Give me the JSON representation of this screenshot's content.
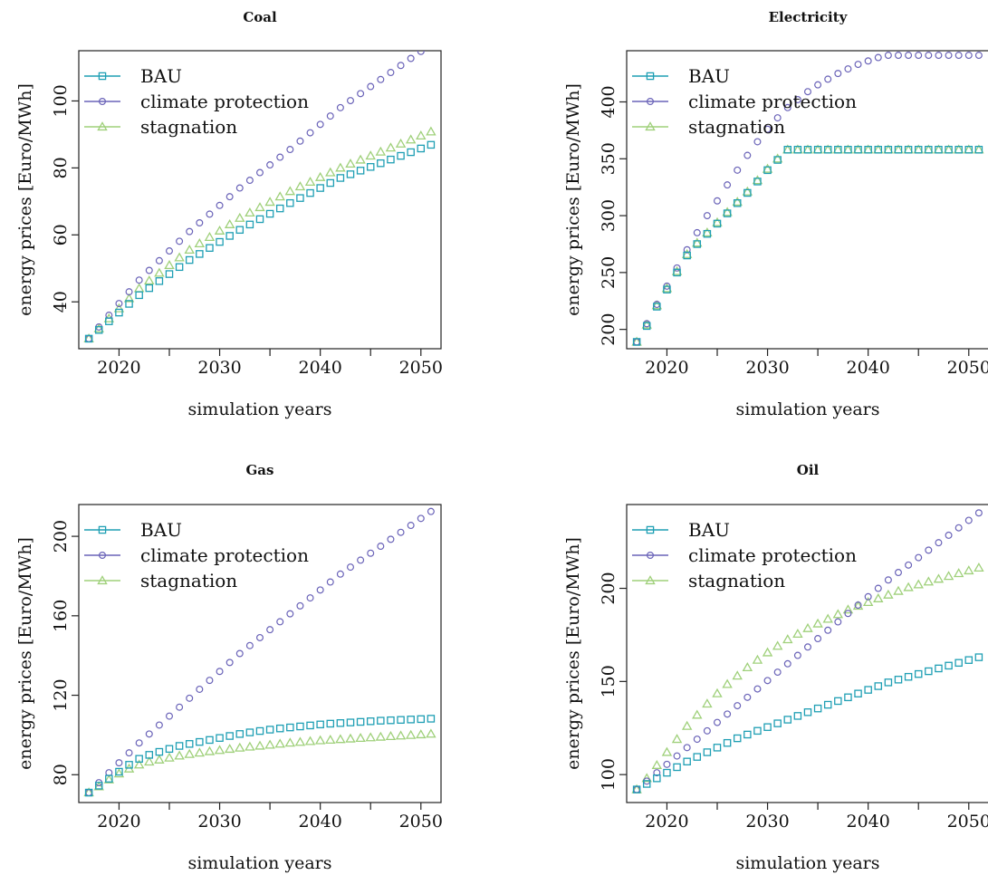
{
  "colors": {
    "BAU": "#1f9fb4",
    "climate protection": "#6a63b8",
    "stagnation": "#9fd07a"
  },
  "chart_data": [
    {
      "type": "scatter",
      "title": "Coal",
      "xlabel": "simulation years",
      "ylabel": "energy prices [Euro/MWh]",
      "xlim": [
        2016,
        2052
      ],
      "ylim": [
        26,
        115
      ],
      "xticks": [
        2020,
        2030,
        2040,
        2050
      ],
      "yticks": [
        40,
        60,
        80,
        100
      ],
      "legend": "top-left",
      "x": [
        2017,
        2018,
        2019,
        2020,
        2021,
        2022,
        2023,
        2024,
        2025,
        2026,
        2027,
        2028,
        2029,
        2030,
        2031,
        2032,
        2033,
        2034,
        2035,
        2036,
        2037,
        2038,
        2039,
        2040,
        2041,
        2042,
        2043,
        2044,
        2045,
        2046,
        2047,
        2048,
        2049,
        2050,
        2051
      ],
      "series": [
        {
          "name": "BAU",
          "marker": "square",
          "values": [
            29,
            31.6,
            34.2,
            36.8,
            39.4,
            42,
            44.1,
            46.2,
            48.3,
            50.4,
            52.5,
            54.3,
            56.1,
            57.9,
            59.7,
            61.5,
            63.1,
            64.7,
            66.3,
            67.9,
            69.5,
            71,
            72.5,
            74,
            75.5,
            77,
            78.1,
            79.2,
            80.3,
            81.4,
            82.5,
            83.6,
            84.7,
            85.8,
            86.9
          ]
        },
        {
          "name": "climate protection",
          "marker": "circle",
          "values": [
            29,
            32.5,
            36,
            39.5,
            43,
            46.5,
            49.4,
            52.3,
            55.2,
            58.1,
            61,
            63.6,
            66.2,
            68.8,
            71.4,
            74,
            76.3,
            78.6,
            80.9,
            83.2,
            85.5,
            88,
            90.5,
            93,
            95.5,
            98,
            100.1,
            102.2,
            104.3,
            106.4,
            108.5,
            110.6,
            112.7,
            114.8,
            116.9
          ]
        },
        {
          "name": "stagnation",
          "marker": "triangle",
          "values": [
            29,
            32,
            35,
            38,
            41,
            44,
            46.3,
            48.6,
            50.9,
            53.2,
            55.5,
            57.4,
            59.3,
            61.2,
            63.1,
            65,
            66.6,
            68.2,
            69.8,
            71.4,
            73,
            74.4,
            75.8,
            77.2,
            78.6,
            80,
            81.2,
            82.4,
            83.6,
            84.8,
            86,
            87.2,
            88.4,
            89.6,
            90.8
          ]
        }
      ]
    },
    {
      "type": "scatter",
      "title": "Electricity",
      "xlabel": "simulation years",
      "ylabel": "energy prices [Euro/MWh]",
      "xlim": [
        2016,
        2052
      ],
      "ylim": [
        183,
        445
      ],
      "xticks": [
        2020,
        2030,
        2040,
        2050
      ],
      "yticks": [
        200,
        250,
        300,
        350,
        400
      ],
      "legend": "top-left",
      "x": [
        2017,
        2018,
        2019,
        2020,
        2021,
        2022,
        2023,
        2024,
        2025,
        2026,
        2027,
        2028,
        2029,
        2030,
        2031,
        2032,
        2033,
        2034,
        2035,
        2036,
        2037,
        2038,
        2039,
        2040,
        2041,
        2042,
        2043,
        2044,
        2045,
        2046,
        2047,
        2048,
        2049,
        2050,
        2051
      ],
      "series": [
        {
          "name": "BAU",
          "marker": "square",
          "values": [
            189,
            203,
            220,
            235,
            250,
            265,
            275,
            284,
            293,
            302,
            311,
            320,
            330,
            340,
            349,
            358,
            358,
            358,
            358,
            358,
            358,
            358,
            358,
            358,
            358,
            358,
            358,
            358,
            358,
            358,
            358,
            358,
            358,
            358,
            358
          ]
        },
        {
          "name": "climate protection",
          "marker": "circle",
          "values": [
            189,
            205,
            222,
            238,
            254,
            270,
            285,
            300,
            313,
            327,
            340,
            353,
            365,
            376,
            386,
            395,
            402,
            409,
            415,
            420,
            425,
            429,
            433,
            436,
            439,
            441,
            441,
            441,
            441,
            441,
            441,
            441,
            441,
            441,
            441
          ]
        },
        {
          "name": "stagnation",
          "marker": "triangle",
          "values": [
            189,
            204,
            221,
            236,
            251,
            266,
            276,
            285,
            294,
            303,
            312,
            321,
            331,
            341,
            350,
            358,
            358,
            358,
            358,
            358,
            358,
            358,
            358,
            358,
            358,
            358,
            358,
            358,
            358,
            358,
            358,
            358,
            358,
            358,
            358
          ]
        }
      ]
    },
    {
      "type": "scatter",
      "title": "Gas",
      "xlabel": "simulation years",
      "ylabel": "energy prices [Euro/MWh]",
      "xlim": [
        2016,
        2052
      ],
      "ylim": [
        66,
        216
      ],
      "xticks": [
        2020,
        2030,
        2040,
        2050
      ],
      "yticks": [
        80,
        120,
        160,
        200
      ],
      "legend": "top-left",
      "x": [
        2017,
        2018,
        2019,
        2020,
        2021,
        2022,
        2023,
        2024,
        2025,
        2026,
        2027,
        2028,
        2029,
        2030,
        2031,
        2032,
        2033,
        2034,
        2035,
        2036,
        2037,
        2038,
        2039,
        2040,
        2041,
        2042,
        2043,
        2044,
        2045,
        2046,
        2047,
        2048,
        2049,
        2050,
        2051
      ],
      "series": [
        {
          "name": "BAU",
          "marker": "square",
          "values": [
            71,
            74.5,
            78,
            81.5,
            85,
            88,
            90,
            91.5,
            93,
            94.5,
            95.5,
            96.5,
            97.5,
            98.5,
            99.5,
            100.5,
            101.3,
            102,
            102.7,
            103.3,
            103.8,
            104.3,
            104.8,
            105.3,
            105.7,
            106,
            106.3,
            106.6,
            106.9,
            107.2,
            107.4,
            107.6,
            107.8,
            108,
            108.2
          ]
        },
        {
          "name": "climate protection",
          "marker": "circle",
          "values": [
            71,
            76,
            81,
            86,
            91,
            96,
            100.5,
            105,
            109.5,
            114,
            118.5,
            123,
            127.5,
            132,
            136.5,
            141,
            145,
            149,
            153,
            157,
            161,
            165,
            169,
            173,
            177,
            181,
            184.5,
            188,
            191.5,
            195,
            198.5,
            202,
            205.5,
            209,
            212.5
          ]
        },
        {
          "name": "stagnation",
          "marker": "triangle",
          "values": [
            71,
            74,
            77.5,
            80.5,
            83,
            85,
            86.5,
            87.5,
            88.5,
            89.5,
            90.3,
            91,
            91.7,
            92.3,
            92.9,
            93.5,
            94,
            94.5,
            95,
            95.5,
            96,
            96.4,
            96.8,
            97.2,
            97.5,
            97.8,
            98.1,
            98.4,
            98.7,
            99,
            99.3,
            99.6,
            99.9,
            100.2,
            100.5
          ]
        }
      ]
    },
    {
      "type": "scatter",
      "title": "Oil",
      "xlabel": "simulation years",
      "ylabel": "energy prices [Euro/MWh]",
      "xlim": [
        2016,
        2052
      ],
      "ylim": [
        85,
        245
      ],
      "xticks": [
        2020,
        2030,
        2040,
        2050
      ],
      "yticks": [
        100,
        150,
        200
      ],
      "legend": "top-left",
      "x": [
        2017,
        2018,
        2019,
        2020,
        2021,
        2022,
        2023,
        2024,
        2025,
        2026,
        2027,
        2028,
        2029,
        2030,
        2031,
        2032,
        2033,
        2034,
        2035,
        2036,
        2037,
        2038,
        2039,
        2040,
        2041,
        2042,
        2043,
        2044,
        2045,
        2046,
        2047,
        2048,
        2049,
        2050,
        2051
      ],
      "series": [
        {
          "name": "BAU",
          "marker": "square",
          "values": [
            92,
            95,
            98,
            101,
            104,
            107,
            109.5,
            112,
            114.5,
            117,
            119.5,
            121.5,
            123.5,
            125.5,
            127.5,
            129.5,
            131.5,
            133.5,
            135.5,
            137.5,
            139.5,
            141.5,
            143.5,
            145.5,
            147.5,
            149.5,
            151,
            152.5,
            154,
            155.5,
            157,
            158.5,
            160,
            161.5,
            163
          ]
        },
        {
          "name": "climate protection",
          "marker": "circle",
          "values": [
            92,
            96.5,
            101,
            105.5,
            110,
            114.5,
            119,
            123.5,
            128,
            132.5,
            137,
            141.5,
            146,
            150.5,
            155,
            159.5,
            164,
            168.5,
            173,
            177.5,
            182,
            186.5,
            191,
            195.5,
            200,
            204.5,
            208.5,
            212.5,
            216.5,
            220.5,
            224.5,
            228.5,
            232.5,
            236.5,
            240.5
          ]
        },
        {
          "name": "stagnation",
          "marker": "triangle",
          "values": [
            92,
            98,
            105,
            112,
            119,
            126,
            132,
            138,
            143.5,
            148.5,
            153,
            157.5,
            161.5,
            165.5,
            169,
            172.5,
            175.5,
            178.5,
            181,
            183.5,
            186,
            188.5,
            190.5,
            192.5,
            194.5,
            196.5,
            198.5,
            200.5,
            202,
            203.5,
            205,
            206.5,
            208,
            209.5,
            211
          ]
        }
      ]
    }
  ]
}
